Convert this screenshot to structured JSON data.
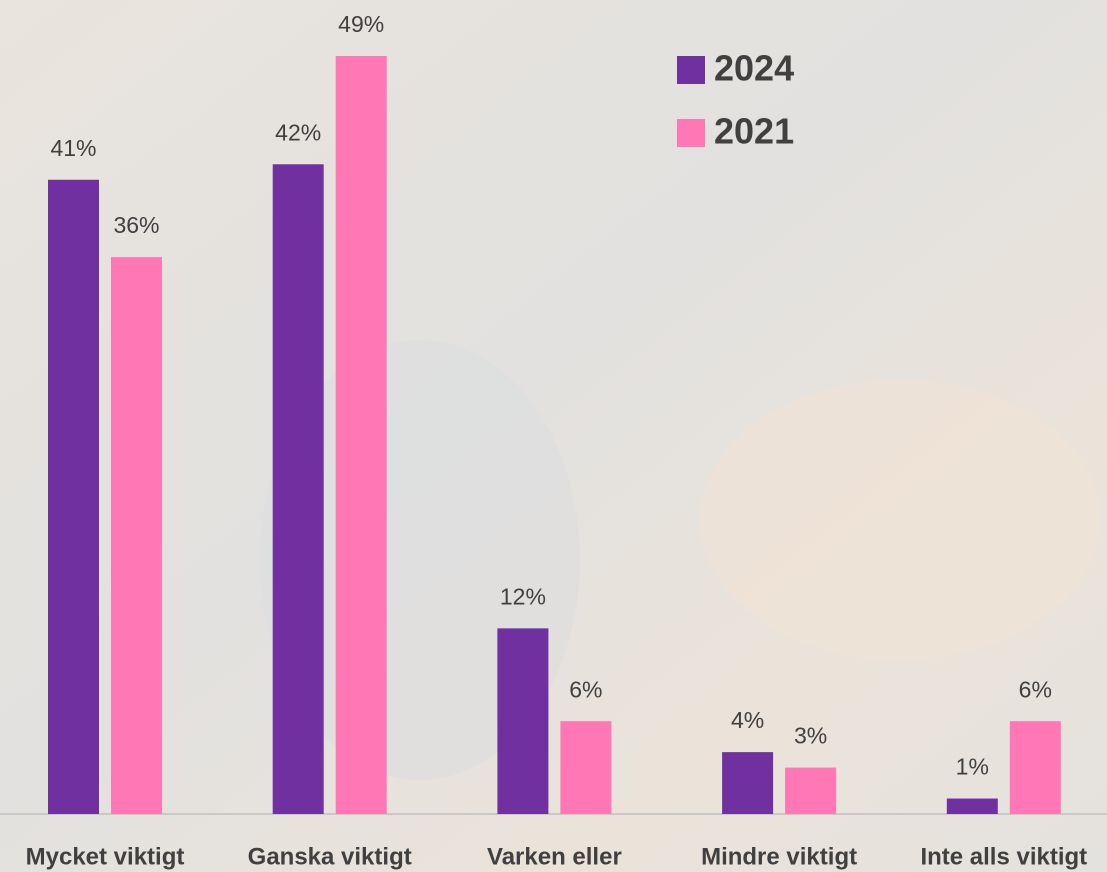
{
  "chart_data": {
    "type": "bar",
    "categories": [
      "Mycket viktigt",
      "Ganska viktigt",
      "Varken eller",
      "Mindre viktigt",
      "Inte alls viktigt"
    ],
    "series": [
      {
        "name": "2024",
        "color": "#7030a0",
        "values": [
          41,
          42,
          12,
          4,
          1
        ],
        "value_labels": [
          "41%",
          "42%",
          "12%",
          "4%",
          "1%"
        ]
      },
      {
        "name": "2021",
        "color": "#ff77b4",
        "values": [
          36,
          49,
          6,
          3,
          6
        ],
        "value_labels": [
          "36%",
          "49%",
          "6%",
          "3%",
          "6%"
        ]
      }
    ]
  }
}
